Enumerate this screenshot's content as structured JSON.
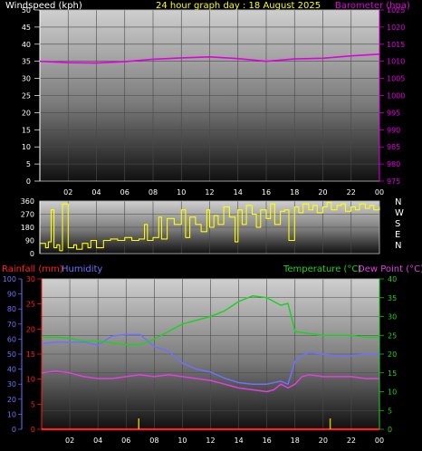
{
  "header": {
    "left_label": "Windspeed (kph)",
    "center_label": "24 hour graph day : 18 August 2025",
    "right_label": "Barometer (hpa)"
  },
  "x_ticks": [
    "02",
    "04",
    "06",
    "08",
    "10",
    "12",
    "14",
    "16",
    "18",
    "20",
    "22",
    "00"
  ],
  "colors": {
    "barometer": "#e000e0",
    "wind_dir": "#ffff00",
    "rain": "#ff2020",
    "humidity": "#7070ff",
    "temperature": "#20d020",
    "dew_point": "#e040e0",
    "rain_tick": "#d0c000"
  },
  "chart_data": [
    {
      "type": "line",
      "left_axis": {
        "label": "Windspeed (kph)",
        "min": 0,
        "max": 50,
        "ticks": [
          0,
          5,
          10,
          15,
          20,
          25,
          30,
          35,
          40,
          45,
          50
        ]
      },
      "right_axis": {
        "label": "Barometer (hpa)",
        "min": 975,
        "max": 1025,
        "ticks": [
          975,
          980,
          985,
          990,
          995,
          1000,
          1005,
          1010,
          1015,
          1020,
          1025
        ]
      },
      "x_ticks": [
        "02",
        "04",
        "06",
        "08",
        "10",
        "12",
        "14",
        "16",
        "18",
        "20",
        "22",
        "00"
      ],
      "grid": true,
      "series": [
        {
          "name": "Barometer (hpa)",
          "axis": "right",
          "x": [
            0,
            2,
            4,
            6,
            8,
            10,
            12,
            14,
            16,
            18,
            20,
            22,
            24
          ],
          "values": [
            1010,
            1009.6,
            1009.5,
            1009.9,
            1010.6,
            1011.0,
            1011.3,
            1010.8,
            1010.0,
            1010.7,
            1010.9,
            1011.6,
            1012.1
          ]
        }
      ]
    },
    {
      "type": "line",
      "left_axis": {
        "min": 0,
        "max": 360,
        "ticks": [
          0,
          90,
          180,
          270,
          360
        ]
      },
      "right_labels": [
        "N",
        "W",
        "S",
        "E",
        "N"
      ],
      "x_ticks": [
        "02",
        "04",
        "06",
        "08",
        "10",
        "12",
        "14",
        "16",
        "18",
        "20",
        "22",
        "00"
      ],
      "grid": true,
      "series": [
        {
          "name": "Wind direction",
          "axis": "left",
          "x": [
            0,
            0.4,
            0.6,
            0.8,
            1,
            1.2,
            1.4,
            1.6,
            2,
            2.4,
            2.6,
            3,
            3.4,
            3.6,
            4,
            4.5,
            5,
            5.5,
            6,
            6.5,
            7,
            7.4,
            7.6,
            8,
            8.4,
            8.6,
            9,
            9.5,
            10,
            10.3,
            10.6,
            11,
            11.4,
            11.8,
            12,
            12.3,
            12.6,
            13,
            13.4,
            13.8,
            14,
            14.3,
            14.6,
            15,
            15.3,
            15.6,
            16,
            16.3,
            16.6,
            17,
            17.3,
            17.6,
            18,
            18.3,
            18.6,
            19,
            19.3,
            19.6,
            20,
            20.3,
            20.6,
            21,
            21.3,
            21.6,
            22,
            22.3,
            22.6,
            23,
            23.3,
            23.6,
            24
          ],
          "values": [
            70,
            40,
            80,
            300,
            40,
            60,
            20,
            340,
            40,
            60,
            30,
            70,
            40,
            90,
            40,
            90,
            100,
            90,
            110,
            90,
            100,
            200,
            90,
            110,
            250,
            100,
            240,
            200,
            300,
            110,
            250,
            200,
            150,
            300,
            180,
            260,
            200,
            320,
            250,
            80,
            300,
            200,
            330,
            270,
            180,
            300,
            240,
            340,
            200,
            290,
            300,
            90,
            320,
            280,
            340,
            300,
            330,
            280,
            320,
            350,
            300,
            330,
            340,
            290,
            320,
            300,
            340,
            310,
            330,
            300,
            320
          ]
        }
      ]
    },
    {
      "type": "line",
      "left_axis": {
        "label": "Humidity",
        "min": 0,
        "max": 100,
        "ticks": [
          0,
          10,
          20,
          30,
          40,
          50,
          60,
          70,
          80,
          90,
          100
        ]
      },
      "left_axis_2": {
        "label": "Rainfall (mm)",
        "min": 0,
        "max": 30,
        "ticks": [
          0,
          5,
          10,
          15,
          20,
          25,
          30
        ]
      },
      "right_axis": {
        "label": "Temperature (°C)",
        "min": 0,
        "max": 40,
        "ticks": [
          0,
          5,
          10,
          15,
          20,
          25,
          30,
          35,
          40
        ]
      },
      "right_label_2": "Dew Point (°C)",
      "x_ticks": [
        "02",
        "04",
        "06",
        "08",
        "10",
        "12",
        "14",
        "16",
        "18",
        "20",
        "22",
        "00"
      ],
      "grid": true,
      "series": [
        {
          "name": "Temperature (°C)",
          "axis": "right",
          "x": [
            0,
            1,
            2,
            3,
            4,
            5,
            6,
            7,
            8,
            9,
            10,
            11,
            12,
            13,
            14,
            15,
            16,
            17,
            17.5,
            18,
            19,
            20,
            21,
            22,
            23,
            24
          ],
          "values": [
            24.5,
            24.5,
            24.2,
            23.5,
            23.5,
            23,
            22.5,
            22.5,
            24,
            26,
            28,
            29,
            30,
            31.5,
            34,
            35.5,
            35,
            33,
            33.5,
            26,
            25.5,
            25,
            25,
            25,
            24.5,
            24.5
          ]
        },
        {
          "name": "Dew Point (°C)",
          "axis": "right",
          "x": [
            0,
            1,
            2,
            3,
            4,
            5,
            6,
            7,
            8,
            9,
            10,
            11,
            12,
            13,
            14,
            15,
            16,
            16.5,
            17,
            17.5,
            18,
            18.5,
            19,
            20,
            21,
            22,
            23,
            24
          ],
          "values": [
            15,
            15.5,
            15,
            14,
            13.5,
            13.5,
            14,
            14.5,
            14,
            14.5,
            14,
            13.5,
            13,
            12,
            11,
            10.5,
            10,
            10.5,
            12,
            11,
            12,
            14,
            14.5,
            14,
            14,
            14,
            13.5,
            13.5
          ]
        },
        {
          "name": "Humidity",
          "axis": "left",
          "x": [
            0,
            1,
            2,
            3,
            4,
            5,
            6,
            7,
            8,
            9,
            10,
            11,
            12,
            13,
            14,
            15,
            16,
            17,
            17.5,
            18,
            18.5,
            19,
            20,
            21,
            22,
            23,
            24
          ],
          "values": [
            57,
            58,
            58,
            58,
            56,
            62,
            63,
            63,
            55,
            52,
            44,
            40,
            38,
            34,
            31,
            30,
            30,
            32,
            30,
            45,
            49,
            51,
            50,
            49,
            49,
            50,
            50
          ]
        },
        {
          "name": "Rainfall (mm)",
          "axis": "left2",
          "x": [
            0,
            24
          ],
          "values": [
            0,
            0
          ]
        }
      ],
      "rain_markers_x": [
        6.9,
        20.5
      ]
    }
  ],
  "panel3": {
    "rain_label": "Rainfall (mm)",
    "humidity_label": "Humidity",
    "temp_label": "Temperature (°C)",
    "dew_label": "Dew Point (°C)"
  }
}
